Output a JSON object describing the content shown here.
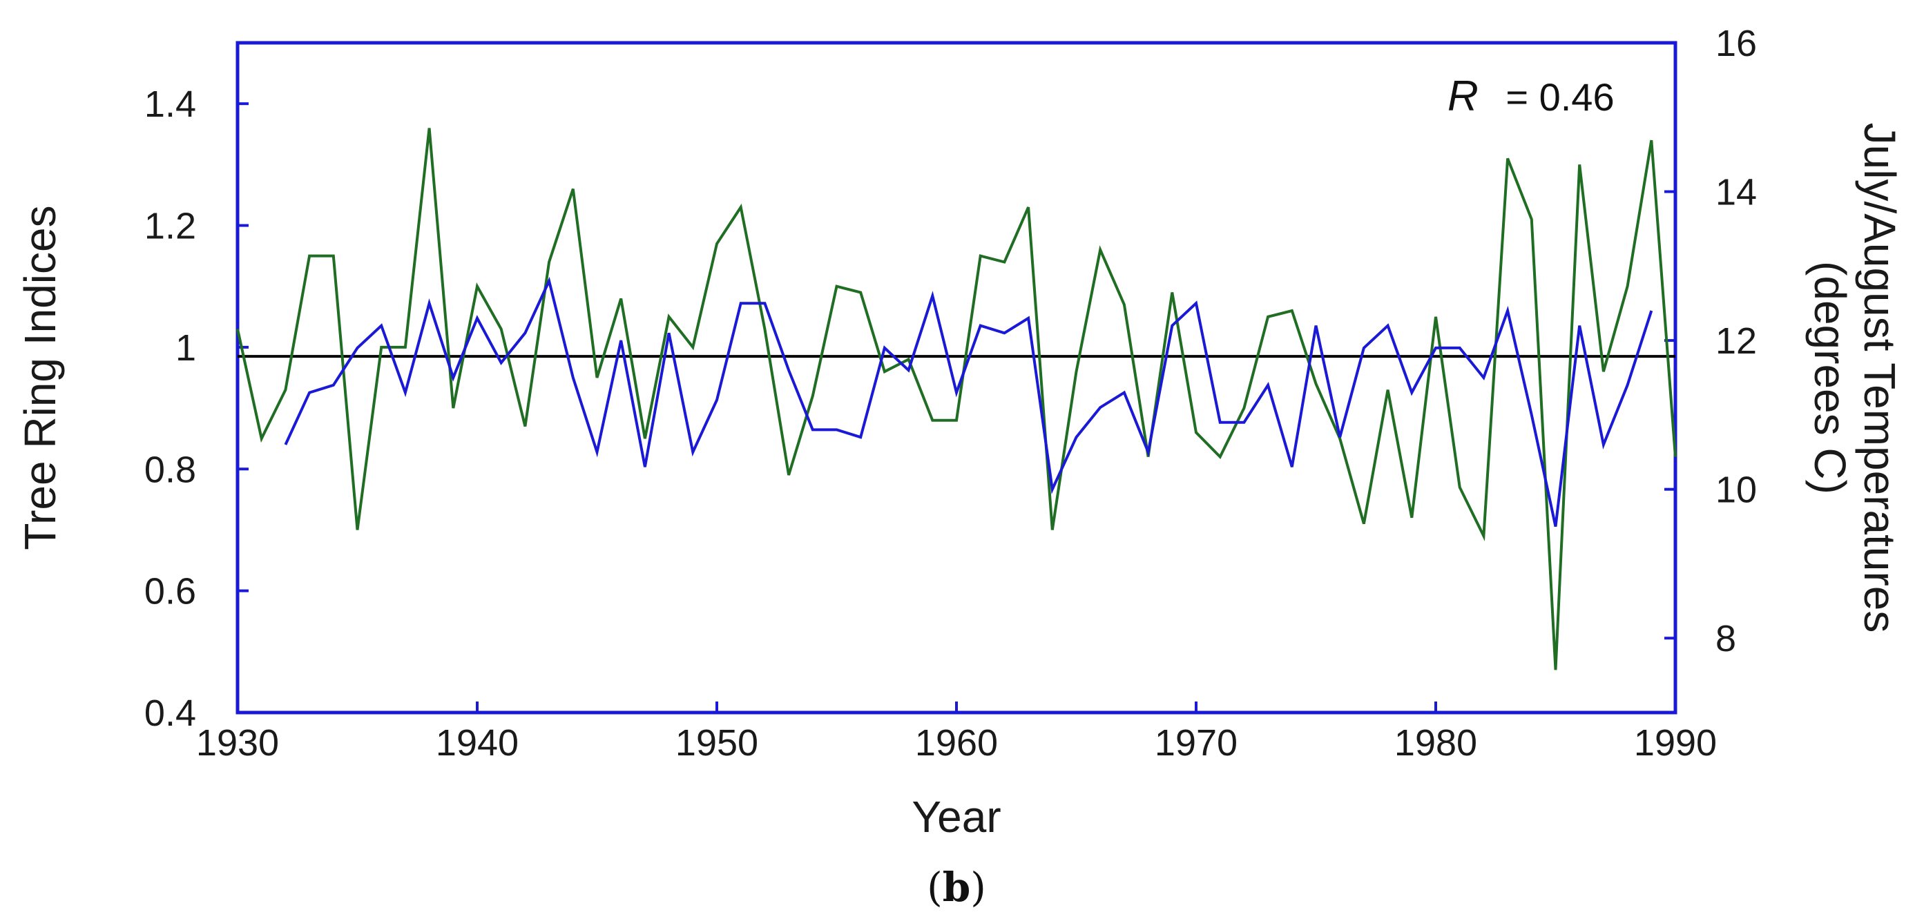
{
  "chart_data": {
    "type": "line",
    "xlabel": "Year",
    "ylabel_left": "Tree Ring Indices",
    "ylabel_right_line1": "July/August Temperatures",
    "ylabel_right_line2": "(degrees C)",
    "xlim": [
      1930,
      1990
    ],
    "ylim_left": [
      0.4,
      1.5
    ],
    "ylim_right": [
      7,
      16
    ],
    "x_ticks": [
      "1930",
      "1940",
      "1950",
      "1960",
      "1970",
      "1980",
      "1990"
    ],
    "y_left_ticks": [
      "0.4",
      "0.6",
      "0.8",
      "1",
      "1.2",
      "1.4"
    ],
    "y_right_ticks": [
      "8",
      "10",
      "12",
      "14",
      "16"
    ],
    "annotation": {
      "symbol": "R",
      "text": "= 0.46"
    },
    "reference_line": {
      "axis": "left",
      "y": 0.985
    },
    "caption": {
      "open": "(",
      "letter": "b",
      "close": ")"
    },
    "colors": {
      "green_series": "#1f6e23",
      "blue_series": "#1a1ad6",
      "reference": "#000000",
      "frame": "#1a1ad6"
    },
    "series": [
      {
        "axis": "left",
        "color": "#1f6e23",
        "x": [
          1930,
          1931,
          1932,
          1933,
          1934,
          1935,
          1936,
          1937,
          1938,
          1939,
          1940,
          1941,
          1942,
          1943,
          1944,
          1945,
          1946,
          1947,
          1948,
          1949,
          1950,
          1951,
          1952,
          1953,
          1954,
          1955,
          1956,
          1957,
          1958,
          1959,
          1960,
          1961,
          1962,
          1963,
          1964,
          1965,
          1966,
          1967,
          1968,
          1969,
          1970,
          1971,
          1972,
          1973,
          1974,
          1975,
          1976,
          1977,
          1978,
          1979,
          1980,
          1981,
          1982,
          1983,
          1984,
          1985,
          1986,
          1987,
          1988,
          1989,
          1990
        ],
        "values": [
          1.03,
          0.85,
          0.93,
          1.15,
          1.15,
          0.7,
          1.0,
          1.0,
          1.36,
          0.9,
          1.1,
          1.03,
          0.87,
          1.14,
          1.26,
          0.95,
          1.08,
          0.85,
          1.05,
          1.0,
          1.17,
          1.23,
          1.03,
          0.79,
          0.92,
          1.1,
          1.09,
          0.96,
          0.98,
          0.88,
          0.88,
          1.15,
          1.14,
          1.23,
          0.7,
          0.96,
          1.16,
          1.07,
          0.82,
          1.09,
          0.86,
          0.82,
          0.9,
          1.05,
          1.06,
          0.94,
          0.85,
          0.71,
          0.93,
          0.72,
          1.05,
          0.77,
          0.69,
          1.31,
          1.21,
          0.47,
          1.3,
          0.96,
          1.1,
          1.34,
          0.82
        ]
      },
      {
        "axis": "right",
        "color": "#1a1ad6",
        "x": [
          1932,
          1933,
          1934,
          1935,
          1936,
          1937,
          1938,
          1939,
          1940,
          1941,
          1942,
          1943,
          1944,
          1945,
          1946,
          1947,
          1948,
          1949,
          1950,
          1951,
          1952,
          1953,
          1954,
          1955,
          1956,
          1957,
          1958,
          1959,
          1960,
          1961,
          1962,
          1963,
          1964,
          1965,
          1966,
          1967,
          1968,
          1969,
          1970,
          1971,
          1972,
          1973,
          1974,
          1975,
          1976,
          1977,
          1978,
          1979,
          1980,
          1981,
          1982,
          1983,
          1984,
          1985,
          1986,
          1987,
          1988,
          1989
        ],
        "values": [
          10.6,
          11.3,
          11.4,
          11.9,
          12.2,
          11.3,
          12.5,
          11.5,
          12.3,
          11.7,
          12.1,
          12.8,
          11.5,
          10.5,
          12.0,
          10.3,
          12.1,
          10.5,
          11.2,
          12.5,
          12.5,
          11.6,
          10.8,
          10.8,
          10.7,
          11.9,
          11.6,
          12.6,
          11.3,
          12.2,
          12.1,
          12.3,
          10.0,
          10.7,
          11.1,
          11.3,
          10.5,
          12.2,
          12.5,
          10.9,
          10.9,
          11.4,
          10.3,
          12.2,
          10.7,
          11.9,
          12.2,
          11.3,
          11.9,
          11.9,
          11.5,
          12.4,
          11.0,
          9.5,
          12.2,
          10.6,
          11.4,
          12.4
        ]
      }
    ]
  }
}
